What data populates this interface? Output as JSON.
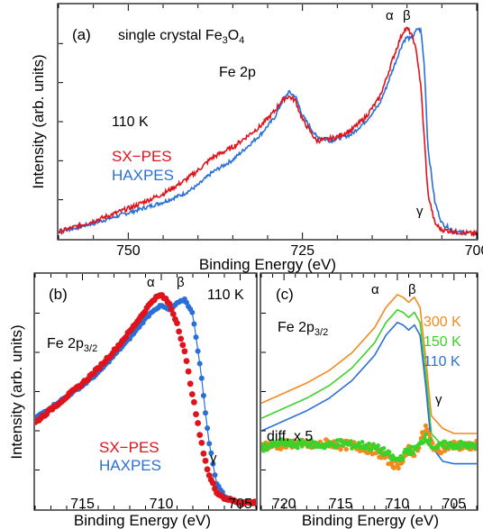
{
  "figure": {
    "ylabel_top": "Intensity (arb. units)",
    "ylabel_bottom": "Intensity (arb. units)",
    "xlabel_a": "Binding Energy (eV)",
    "xlabel_b": "Binding Energy (eV)",
    "xlabel_c": "Binding Energy (eV)"
  },
  "chart_data": [
    {
      "type": "line",
      "panel": "(a)",
      "annotations": [
        "single crystal Fe3O4",
        "Fe 2p",
        "110 K",
        "α",
        "β",
        "γ"
      ],
      "xlim": [
        760,
        700
      ],
      "xticks": [
        750,
        725,
        700
      ],
      "xlabel": "Binding Energy (eV)",
      "ylabel": "Intensity (arb. units)",
      "series": [
        {
          "name": "SX−PES",
          "color": "#e0121b",
          "x": [
            760,
            755,
            750,
            745,
            742,
            740,
            738,
            735,
            733,
            731,
            729,
            728,
            727,
            726,
            725,
            723,
            721,
            720,
            718,
            716,
            714,
            713,
            712,
            711,
            710.5,
            710,
            709.5,
            709,
            708.5,
            708,
            707.5,
            707,
            706,
            705,
            703,
            700
          ],
          "y": [
            0.02,
            0.07,
            0.13,
            0.2,
            0.26,
            0.31,
            0.37,
            0.42,
            0.47,
            0.52,
            0.59,
            0.64,
            0.66,
            0.64,
            0.55,
            0.45,
            0.46,
            0.47,
            0.5,
            0.56,
            0.65,
            0.74,
            0.84,
            0.93,
            0.97,
            0.98,
            0.96,
            0.92,
            0.84,
            0.7,
            0.45,
            0.2,
            0.06,
            0.03,
            0.02,
            0.01
          ]
        },
        {
          "name": "HAXPES",
          "color": "#2a6fd6",
          "x": [
            760,
            755,
            750,
            745,
            742,
            740,
            738,
            735,
            733,
            731,
            729,
            728,
            727,
            726,
            725,
            723,
            721,
            720,
            718,
            716,
            714,
            713,
            712,
            711,
            710.5,
            710,
            709.5,
            709,
            708.5,
            708,
            707.5,
            707,
            706,
            705,
            703,
            700
          ],
          "y": [
            0.02,
            0.06,
            0.11,
            0.16,
            0.2,
            0.24,
            0.3,
            0.36,
            0.42,
            0.48,
            0.56,
            0.63,
            0.68,
            0.66,
            0.57,
            0.47,
            0.45,
            0.46,
            0.48,
            0.54,
            0.62,
            0.7,
            0.79,
            0.88,
            0.92,
            0.94,
            0.93,
            0.95,
            0.98,
            0.97,
            0.8,
            0.42,
            0.16,
            0.06,
            0.02,
            0.01
          ]
        }
      ],
      "legend": [
        "SX−PES",
        "HAXPES"
      ]
    },
    {
      "type": "line",
      "panel": "(b)",
      "annotations": [
        "Fe 2p3/2",
        "110 K",
        "α",
        "β",
        "γ"
      ],
      "xlim": [
        718,
        704
      ],
      "xticks": [
        715,
        710,
        705
      ],
      "xlabel": "Binding Energy (eV)",
      "ylabel": "Intensity (arb. units)",
      "series": [
        {
          "name": "SX−PES",
          "color": "#e0121b",
          "x": [
            718,
            717,
            716,
            715,
            714,
            713,
            712,
            711,
            710.5,
            710,
            709.5,
            709,
            708.5,
            708,
            707.5,
            707,
            706.5,
            706,
            705.5,
            705,
            704.5,
            704
          ],
          "y": [
            0.38,
            0.44,
            0.5,
            0.56,
            0.63,
            0.71,
            0.8,
            0.9,
            0.95,
            0.97,
            0.93,
            0.84,
            0.7,
            0.5,
            0.3,
            0.14,
            0.06,
            0.03,
            0.02,
            0.01,
            0.01,
            0.01
          ]
        },
        {
          "name": "HAXPES",
          "color": "#2a6fd6",
          "x": [
            718,
            717,
            716,
            715,
            714,
            713,
            712,
            711,
            710.5,
            710,
            709.5,
            709,
            708.5,
            708,
            707.5,
            707,
            706.5,
            706,
            705.5,
            705,
            704.5,
            704
          ],
          "y": [
            0.4,
            0.45,
            0.5,
            0.55,
            0.61,
            0.69,
            0.77,
            0.86,
            0.9,
            0.92,
            0.9,
            0.93,
            0.95,
            0.88,
            0.62,
            0.3,
            0.1,
            0.04,
            0.02,
            0.01,
            0.01,
            0.01
          ]
        }
      ],
      "legend": [
        "SX−PES",
        "HAXPES"
      ]
    },
    {
      "type": "line",
      "panel": "(c)",
      "annotations": [
        "Fe 2p3/2",
        "α",
        "β",
        "γ",
        "diff. x 5"
      ],
      "xlim": [
        722,
        703
      ],
      "xticks": [
        720,
        715,
        710,
        705
      ],
      "xlabel": "Binding Energy (eV)",
      "series": [
        {
          "name": "300 K",
          "color": "#f28a1e",
          "x": [
            722,
            720,
            718,
            716,
            714,
            712,
            711,
            710,
            709.5,
            709,
            708.5,
            708,
            707.5,
            707,
            706,
            705,
            703
          ],
          "y": [
            0.42,
            0.46,
            0.5,
            0.55,
            0.62,
            0.72,
            0.8,
            0.85,
            0.84,
            0.82,
            0.84,
            0.8,
            0.6,
            0.37,
            0.32,
            0.3,
            0.3
          ]
        },
        {
          "name": "150 K",
          "color": "#3bd12a",
          "x": [
            722,
            720,
            718,
            716,
            714,
            712,
            711,
            710,
            709.5,
            709,
            708.5,
            708,
            707.5,
            707,
            706,
            705,
            703
          ],
          "y": [
            0.36,
            0.4,
            0.44,
            0.49,
            0.56,
            0.66,
            0.74,
            0.79,
            0.78,
            0.76,
            0.78,
            0.74,
            0.54,
            0.3,
            0.25,
            0.24,
            0.24
          ]
        },
        {
          "name": "110 K",
          "color": "#2a6fd6",
          "x": [
            722,
            720,
            718,
            716,
            714,
            712,
            711,
            710,
            709.5,
            709,
            708.5,
            708,
            707.5,
            707,
            706,
            705,
            703
          ],
          "y": [
            0.31,
            0.35,
            0.39,
            0.44,
            0.51,
            0.61,
            0.69,
            0.74,
            0.73,
            0.71,
            0.73,
            0.69,
            0.49,
            0.25,
            0.19,
            0.18,
            0.18
          ]
        },
        {
          "name": "diff 300 K",
          "color": "#f28a1e",
          "marker": "dot",
          "x": [
            722,
            721,
            720,
            719,
            718,
            717,
            716,
            715,
            714,
            713,
            712,
            711,
            710.5,
            710,
            709.5,
            709,
            708.5,
            708,
            707.5,
            707,
            706.5,
            706,
            705,
            704,
            703
          ],
          "y": [
            0.05,
            0.05,
            0.05,
            0.06,
            0.05,
            0.05,
            0.06,
            0.05,
            0.05,
            0.04,
            0.03,
            0.0,
            -0.02,
            -0.03,
            0.0,
            0.03,
            0.02,
            0.06,
            0.12,
            0.06,
            0.03,
            0.04,
            0.05,
            0.04,
            0.05
          ]
        },
        {
          "name": "diff 150 K",
          "color": "#3bd12a",
          "marker": "dot",
          "x": [
            722,
            721,
            720,
            719,
            718,
            717,
            716,
            715,
            714,
            713,
            712,
            711,
            710.5,
            710,
            709.5,
            709,
            708.5,
            708,
            707.5,
            707,
            706.5,
            706,
            705,
            704,
            703
          ],
          "y": [
            0.04,
            0.05,
            0.06,
            0.05,
            0.06,
            0.05,
            0.05,
            0.06,
            0.05,
            0.05,
            0.04,
            0.02,
            0.0,
            -0.01,
            0.01,
            0.03,
            0.03,
            0.05,
            0.09,
            0.05,
            0.04,
            0.05,
            0.05,
            0.05,
            0.04
          ]
        }
      ],
      "legend": [
        "300 K",
        "150 K",
        "110 K"
      ]
    }
  ]
}
